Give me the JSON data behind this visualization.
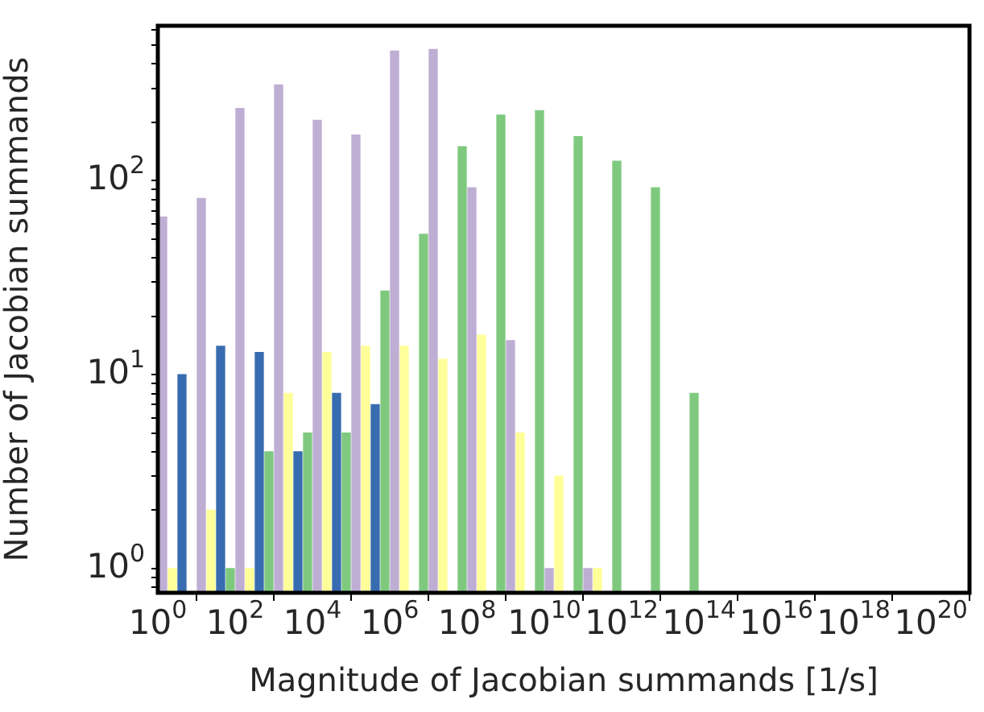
{
  "chart_data": {
    "type": "histogram",
    "xlabel": "Magnitude of Jacobian summands [1/s]",
    "ylabel": "Number of Jacobian summands",
    "log": "xy",
    "bins": [
      1,
      10,
      100,
      1000,
      10000,
      100000,
      1000000,
      10000000,
      100000000,
      1000000000,
      10000000000,
      100000000000,
      1000000000000,
      10000000000000,
      100000000000000
    ],
    "series": [
      {
        "color": "#beaed4",
        "values": [
          65,
          81,
          236,
          312,
          205,
          172,
          467,
          476,
          92,
          15,
          1,
          1,
          null,
          null
        ]
      },
      {
        "color": "#ffff99",
        "values": [
          1,
          2,
          1,
          8,
          13,
          14,
          14,
          12,
          16,
          5,
          3,
          1,
          null,
          null
        ]
      },
      {
        "color": "#386cb0",
        "values": [
          10,
          14,
          13,
          4,
          8,
          7,
          null,
          null,
          null,
          null,
          null,
          null,
          null,
          null
        ]
      },
      {
        "color": "#7fc97f",
        "values": [
          null,
          1,
          4,
          5,
          5,
          27,
          53,
          150,
          218,
          230,
          169,
          126,
          92,
          8
        ]
      }
    ],
    "xlim": [
      1,
      1e+21
    ],
    "xticks": [
      {
        "value": 1,
        "label": "10$^{0}$"
      },
      {
        "value": 100,
        "label": "10$^{2}$"
      },
      {
        "value": 10000,
        "label": "10$^{4}$"
      },
      {
        "value": 1000000,
        "label": "10$^{6}$"
      },
      {
        "value": 100000000,
        "label": "10$^{8}$"
      },
      {
        "value": 10000000000,
        "label": "10$^{10}$"
      },
      {
        "value": 1000000000000,
        "label": "10$^{12}$"
      },
      {
        "value": 100000000000000,
        "label": "10$^{14}$"
      },
      {
        "value": 1e+16,
        "label": "10$^{16}$"
      },
      {
        "value": 1e+18,
        "label": "10$^{18}$"
      },
      {
        "value": 1e+20,
        "label": "10$^{20}$"
      }
    ],
    "ylim": [
      0.75,
      630
    ],
    "yticks": [
      {
        "value": 0.8,
        "label": null
      },
      {
        "value": 0.9,
        "label": null
      },
      {
        "value": 1,
        "label": "10$^{0}$"
      },
      {
        "value": 2,
        "label": null
      },
      {
        "value": 3,
        "label": null
      },
      {
        "value": 4,
        "label": null
      },
      {
        "value": 5,
        "label": null
      },
      {
        "value": 6,
        "label": null
      },
      {
        "value": 7,
        "label": null
      },
      {
        "value": 8,
        "label": null
      },
      {
        "value": 9,
        "label": null
      },
      {
        "value": 10,
        "label": "10$^{1}$"
      },
      {
        "value": 20,
        "label": null
      },
      {
        "value": 30,
        "label": null
      },
      {
        "value": 40,
        "label": null
      },
      {
        "value": 50,
        "label": null
      },
      {
        "value": 60,
        "label": null
      },
      {
        "value": 70,
        "label": null
      },
      {
        "value": 80,
        "label": null
      },
      {
        "value": 90,
        "label": null
      },
      {
        "value": 100,
        "label": "10$^{2}$"
      },
      {
        "value": 200,
        "label": null
      },
      {
        "value": 300,
        "label": null
      },
      {
        "value": 400,
        "label": null
      },
      {
        "value": 500,
        "label": null
      },
      {
        "value": 600,
        "label": null
      }
    ]
  }
}
